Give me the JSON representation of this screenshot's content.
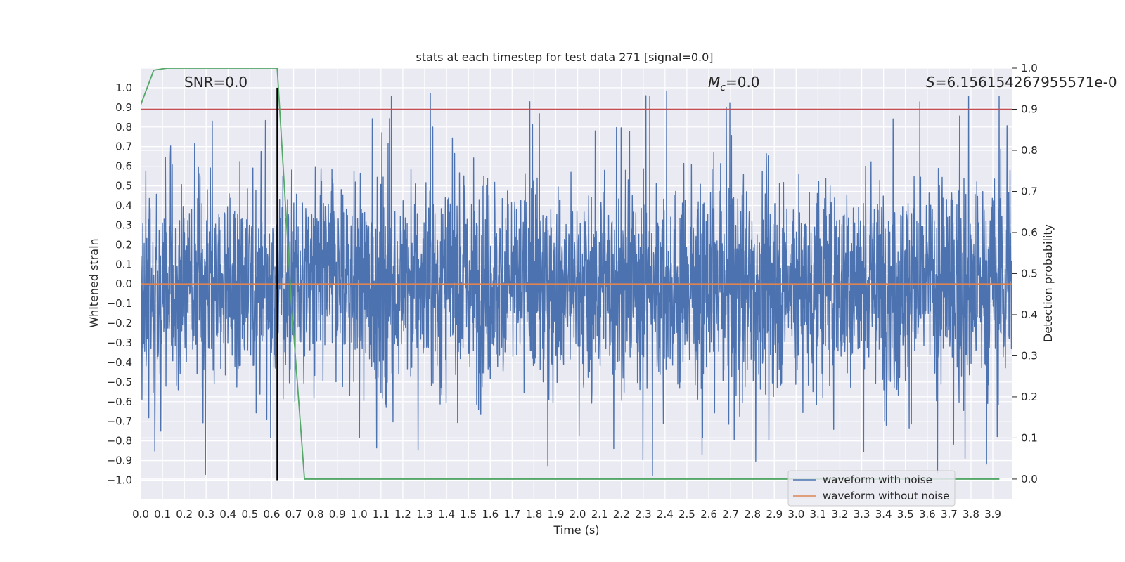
{
  "chart_data": {
    "type": "line",
    "title": "stats at each timestep for test data 271 [signal=0.0]",
    "xlabel": "Time (s)",
    "ylabel": "Whitened strain",
    "y2label": "Detection probability",
    "xlim": [
      0.0,
      3.99
    ],
    "ylim": [
      -1.095,
      1.1
    ],
    "y2lim": [
      -0.048,
      1.0
    ],
    "x_ticks": [
      0.0,
      0.1,
      0.2,
      0.3,
      0.4,
      0.5,
      0.6,
      0.7,
      0.8,
      0.9,
      1.0,
      1.1,
      1.2,
      1.3,
      1.4,
      1.5,
      1.6,
      1.7,
      1.8,
      1.9,
      2.0,
      2.1,
      2.2,
      2.3,
      2.4,
      2.5,
      2.6,
      2.7,
      2.8,
      2.9,
      3.0,
      3.1,
      3.2,
      3.3,
      3.4,
      3.5,
      3.6,
      3.7,
      3.8,
      3.9
    ],
    "x_tick_labels": [
      "0.0",
      "0.1",
      "0.2",
      "0.3",
      "0.4",
      "0.5",
      "0.6",
      "0.7",
      "0.8",
      "0.9",
      "1.0",
      "1.1",
      "1.2",
      "1.3",
      "1.4",
      "1.5",
      "1.6",
      "1.7",
      "1.8",
      "1.9",
      "2.0",
      "2.1",
      "2.2",
      "2.3",
      "2.4",
      "2.5",
      "2.6",
      "2.7",
      "2.8",
      "2.9",
      "3.0",
      "3.1",
      "3.2",
      "3.3",
      "3.4",
      "3.5",
      "3.6",
      "3.7",
      "3.8",
      "3.9"
    ],
    "y_ticks": [
      1.0,
      0.9,
      0.8,
      0.7,
      0.6,
      0.5,
      0.4,
      0.3,
      0.2,
      0.1,
      0.0,
      -0.1,
      -0.2,
      -0.3,
      -0.4,
      -0.5,
      -0.6,
      -0.7,
      -0.8,
      -0.9,
      -1.0
    ],
    "y_tick_labels": [
      "1.0",
      "0.9",
      "0.8",
      "0.7",
      "0.6",
      "0.5",
      "0.4",
      "0.3",
      "0.2",
      "0.1",
      "0.0",
      "−0.1",
      "−0.2",
      "−0.3",
      "−0.4",
      "−0.5",
      "−0.6",
      "−0.7",
      "−0.8",
      "−0.9",
      "−1.0"
    ],
    "y2_ticks": [
      1.0,
      0.9,
      0.8,
      0.7,
      0.6,
      0.5,
      0.4,
      0.3,
      0.2,
      0.1,
      0.0
    ],
    "y2_tick_labels": [
      "1.0",
      "0.9",
      "0.8",
      "0.7",
      "0.6",
      "0.5",
      "0.4",
      "0.3",
      "0.2",
      "0.1",
      "0.0"
    ],
    "annotations": {
      "snr": "SNR=0.0",
      "mc_symbol": "M",
      "mc_sub": "c",
      "mc_value": "=0.0",
      "s_symbol": "S",
      "s_value": "=6.156154267955571e-0"
    },
    "series": [
      {
        "name": "waveform with noise",
        "color": "#4c72b0",
        "style": "dense noisy strain, amplitude roughly ±0.6 with spikes reaching ±1.0",
        "x_range": [
          0.0,
          3.99
        ]
      },
      {
        "name": "waveform without noise",
        "color": "#dd8452",
        "x": [
          0.0,
          3.99
        ],
        "y": [
          0.0,
          0.0
        ]
      }
    ],
    "detection_probability": {
      "color": "#55a868",
      "axis": "right",
      "x": [
        0.0,
        0.06,
        0.12,
        0.18,
        0.24,
        0.3,
        0.36,
        0.42,
        0.48,
        0.54,
        0.6,
        0.625,
        0.69,
        0.75,
        0.82,
        0.9,
        1.0,
        2.0,
        3.0,
        3.93
      ],
      "y": [
        0.91,
        0.995,
        1.0,
        1.0,
        1.0,
        1.0,
        1.0,
        1.0,
        1.0,
        1.0,
        1.0,
        1.0,
        0.43,
        0.0,
        0.0,
        0.0,
        0.0,
        0.0,
        0.0,
        0.0
      ]
    },
    "threshold_line": {
      "color": "#c44e52",
      "axis": "right",
      "y": 0.9
    },
    "event_marker": {
      "color": "#000000",
      "axis": "left",
      "x": 0.625,
      "y_from": -1.0,
      "y_to": 1.0
    },
    "legend": {
      "placement": "lower right",
      "entries": [
        "waveform with noise",
        "waveform without noise"
      ]
    },
    "grid": true,
    "plot_background": "#eaeaf2"
  }
}
